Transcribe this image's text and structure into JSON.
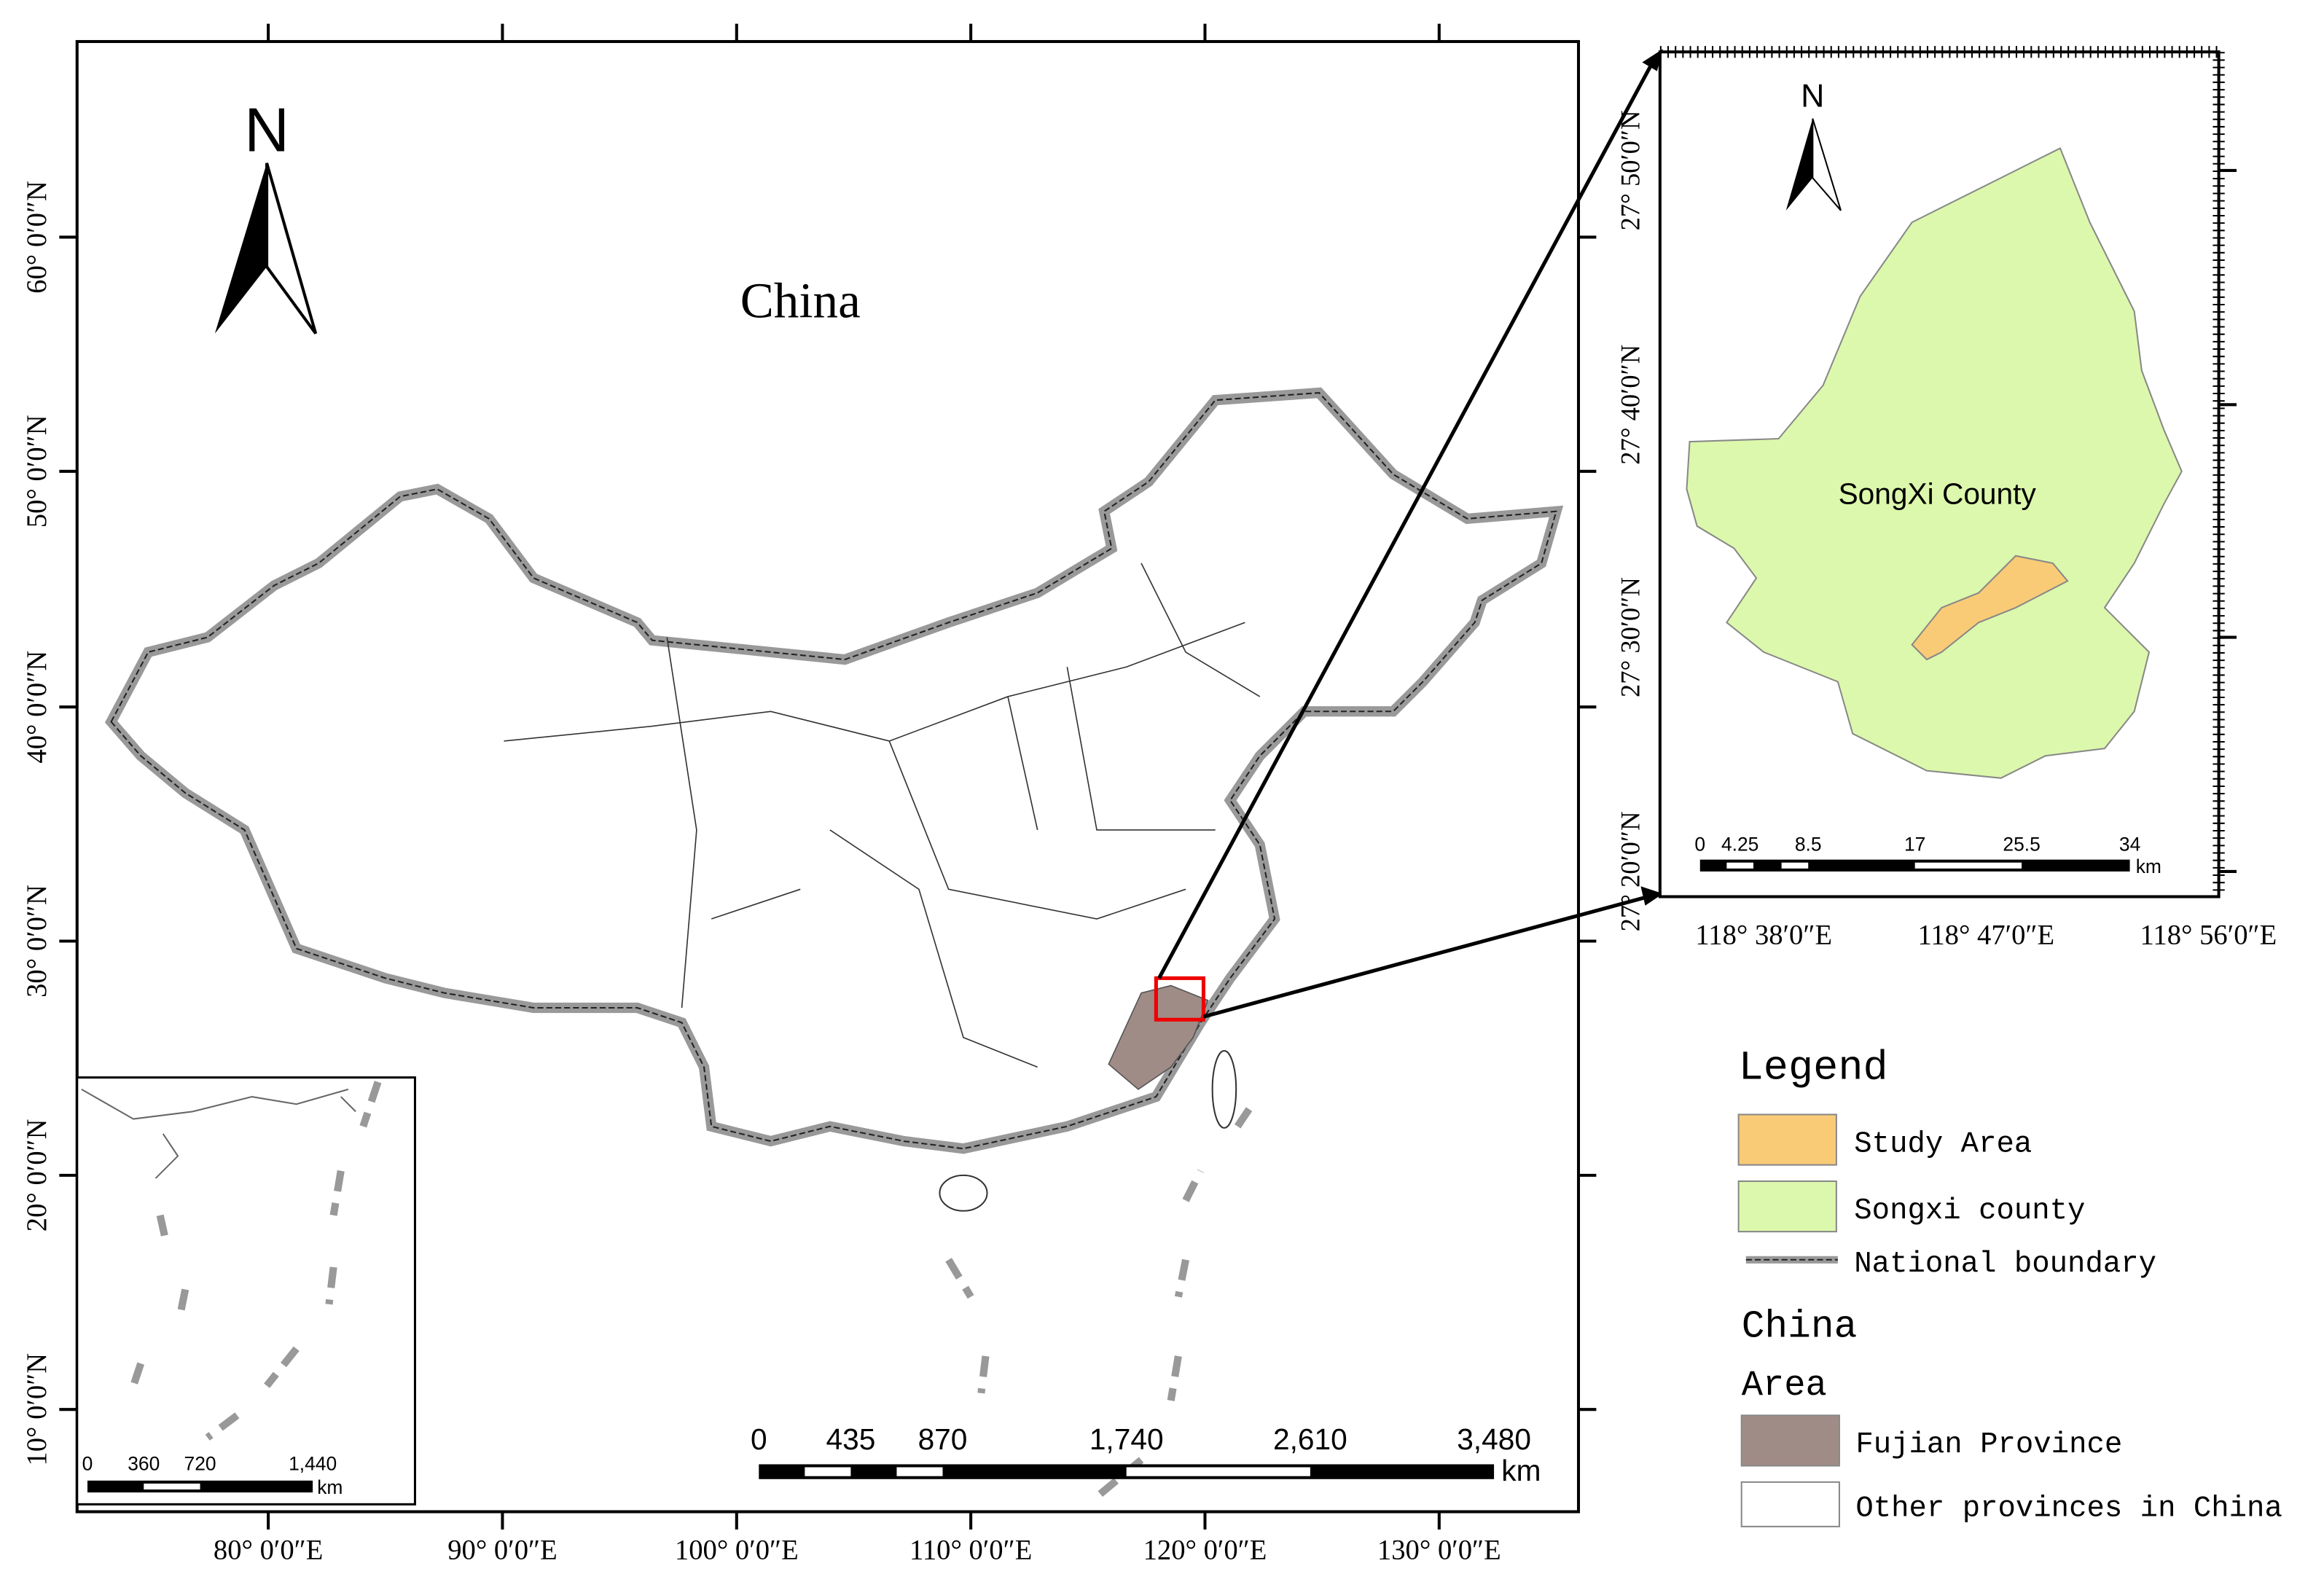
{
  "main_map": {
    "title": "China",
    "north": "N",
    "lon_labels": [
      "80° 0′0″E",
      "90° 0′0″E",
      "100° 0′0″E",
      "110° 0′0″E",
      "120° 0′0″E",
      "130° 0′0″E"
    ],
    "lat_labels": [
      "60° 0′0″N",
      "50° 0′0″N",
      "40° 0′0″N",
      "30° 0′0″N",
      "20° 0′0″N",
      "10° 0′0″N"
    ],
    "scale_labels": [
      "0",
      "435",
      "870",
      "1,740",
      "2,610",
      "3,480"
    ],
    "scale_unit": "km"
  },
  "inset_map": {
    "scale_labels": [
      "0",
      "360",
      "720",
      "1,440"
    ],
    "scale_unit": "km"
  },
  "detail_map": {
    "north": "N",
    "label": "SongXi County",
    "lat_labels": [
      "27° 50′0″N",
      "27° 40′0″N",
      "27° 30′0″N",
      "27° 20′0″N"
    ],
    "lon_labels": [
      "118° 38′0″E",
      "118° 47′0″E",
      "118° 56′0″E"
    ],
    "scale_labels": [
      "0",
      "4.25",
      "8.5",
      "17",
      "25.5",
      "34"
    ],
    "scale_unit": "km"
  },
  "legend": {
    "title": "Legend",
    "items": [
      "Study Area",
      "Songxi county",
      "National boundary"
    ],
    "section": "China",
    "subsection": "Area",
    "area_items": [
      "Fujian Province",
      "Other provinces in China"
    ]
  }
}
